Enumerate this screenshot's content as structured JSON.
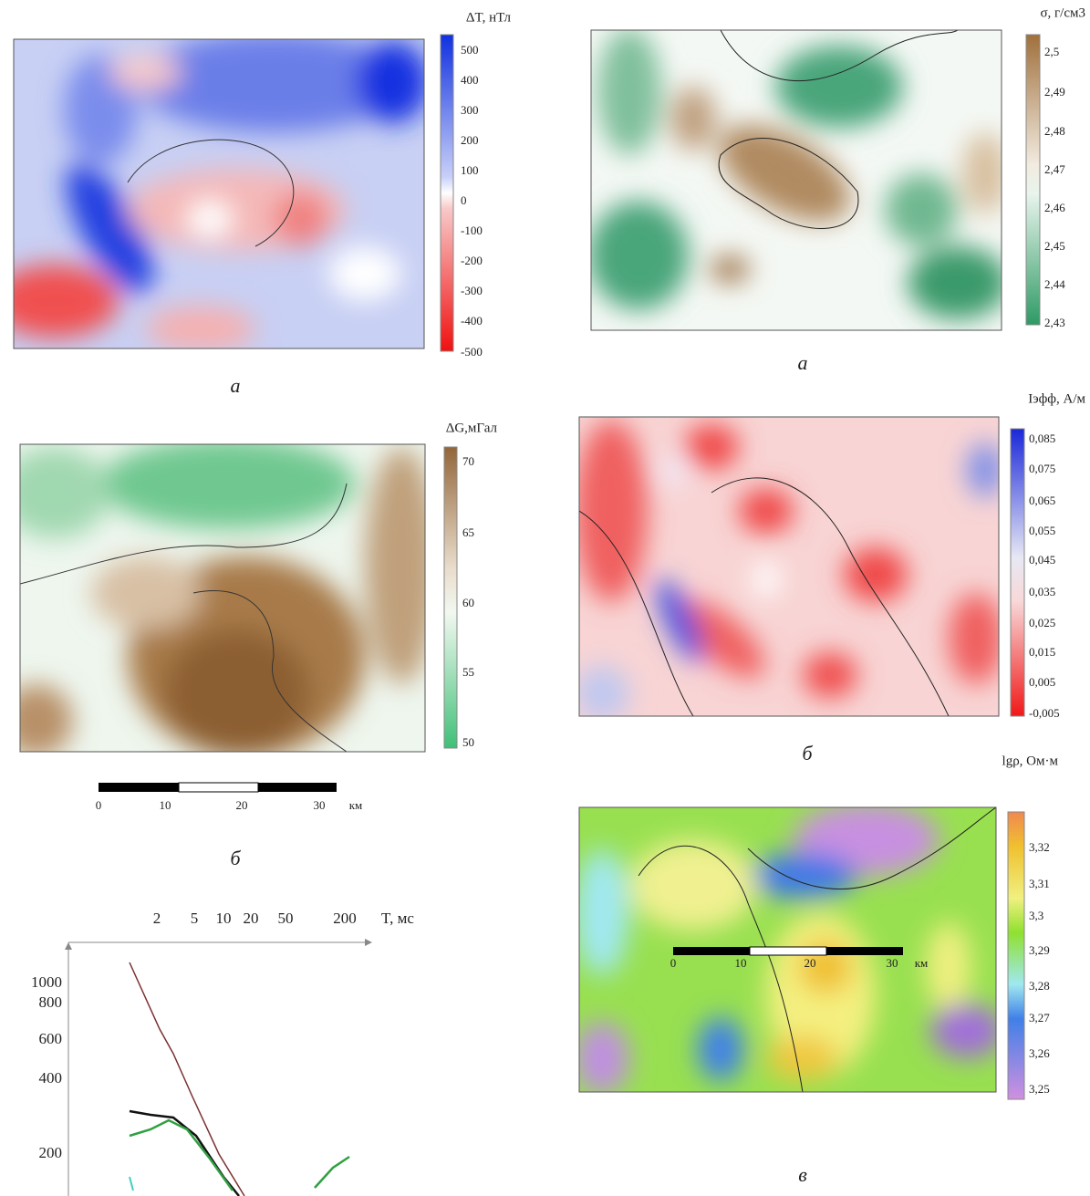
{
  "panels": [
    {
      "unit": "ΔT, нТл",
      "colorbar_labels": [
        "500",
        "400",
        "300",
        "200",
        "100",
        "0",
        "-100",
        "-200",
        "-300",
        "-400",
        "-500"
      ],
      "caption": "а"
    },
    {
      "unit": "σ, г/см3",
      "colorbar_labels": [
        "2,5",
        "2,49",
        "2,48",
        "2,47",
        "2,46",
        "2,45",
        "2,44",
        "2,43"
      ],
      "caption": "а"
    },
    {
      "unit": "ΔG,мГал",
      "colorbar_labels": [
        "70",
        "65",
        "60",
        "55",
        "50"
      ],
      "caption": "б"
    },
    {
      "unit": "Iэфф, А/м",
      "colorbar_labels": [
        "0,085",
        "0,075",
        "0,065",
        "0,055",
        "0,045",
        "0,035",
        "0,025",
        "0,015",
        "0,005",
        "-0,005"
      ],
      "caption": "б"
    },
    {
      "unit": "lgρ, Ом·м",
      "colorbar_labels": [
        "3,32",
        "3,31",
        "3,3",
        "3,29",
        "3,28",
        "3,27",
        "3,26",
        "3,25"
      ],
      "caption": "в"
    }
  ],
  "scale_bars": [
    {
      "labels": [
        "0",
        "10",
        "20",
        "30"
      ],
      "unit": "км"
    },
    {
      "labels": [
        "0",
        "10",
        "20",
        "30"
      ],
      "unit": "км"
    }
  ],
  "plot": {
    "x_label": "T, мс",
    "x_ticks": [
      "2",
      "5",
      "10",
      "20",
      "50",
      "200"
    ],
    "y_ticks": [
      "1000",
      "800",
      "600",
      "400",
      "200"
    ]
  }
}
